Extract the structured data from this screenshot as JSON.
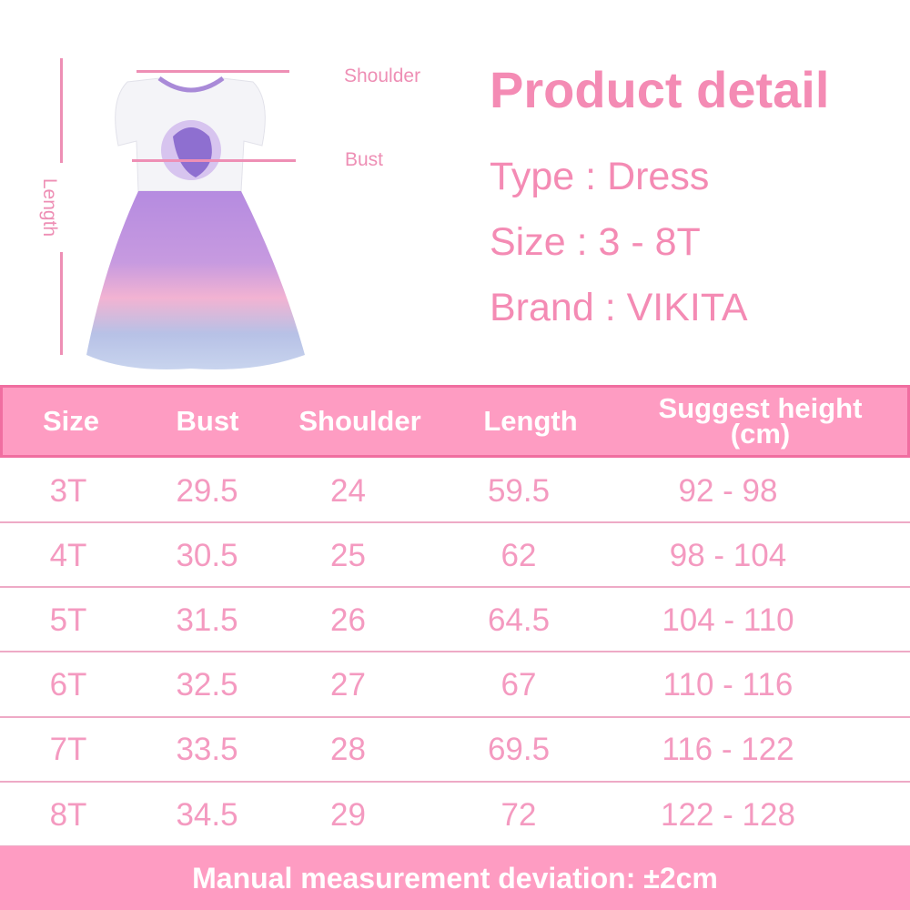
{
  "diagram": {
    "shoulder_label": "Shoulder",
    "bust_label": "Bust",
    "length_label": "Length"
  },
  "product": {
    "title": "Product detail",
    "type": "Type : Dress",
    "size": "Size : 3 - 8T",
    "brand": "Brand : VIKITA"
  },
  "table": {
    "headers": [
      "Size",
      "Bust",
      "Shoulder",
      "Length",
      "Suggest height (cm)"
    ],
    "rows": [
      [
        "3T",
        "29.5",
        "24",
        "59.5",
        "92 - 98"
      ],
      [
        "4T",
        "30.5",
        "25",
        "62",
        "98 - 104"
      ],
      [
        "5T",
        "31.5",
        "26",
        "64.5",
        "104 - 110"
      ],
      [
        "6T",
        "32.5",
        "27",
        "67",
        "110 - 116"
      ],
      [
        "7T",
        "33.5",
        "28",
        "69.5",
        "116 - 122"
      ],
      [
        "8T",
        "34.5",
        "29",
        "72",
        "122 - 128"
      ]
    ]
  },
  "footer": {
    "note": "Manual measurement deviation: ±2cm"
  },
  "colors": {
    "accent": "#f48bb4",
    "header_bg": "#fe9cc2",
    "border": "#f06ea0"
  }
}
